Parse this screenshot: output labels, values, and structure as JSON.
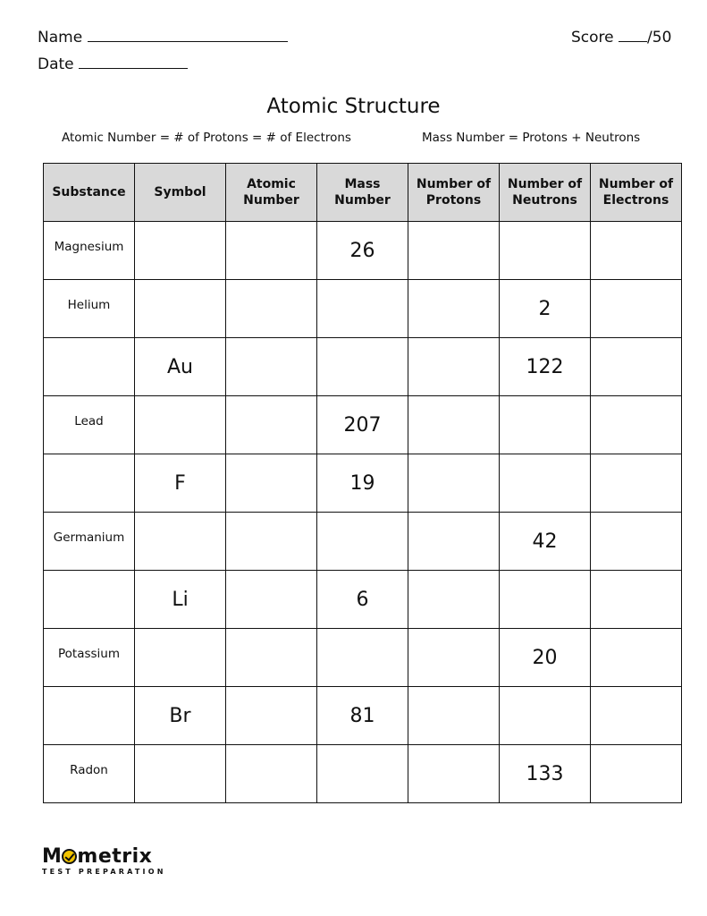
{
  "header": {
    "name_label": "Name",
    "date_label": "Date",
    "score_label": "Score",
    "score_total": "/50"
  },
  "title": "Atomic Structure",
  "formulas": {
    "left": "Atomic Number = # of Protons = # of Electrons",
    "right": "Mass Number = Protons + Neutrons"
  },
  "table": {
    "columns": [
      [
        "Substance"
      ],
      [
        "Symbol"
      ],
      [
        "Atomic",
        "Number"
      ],
      [
        "Mass",
        "Number"
      ],
      [
        "Number of",
        "Protons"
      ],
      [
        "Number of",
        "Neutrons"
      ],
      [
        "Number of",
        "Electrons"
      ]
    ],
    "rows": [
      [
        "Magnesium",
        "",
        "",
        "26",
        "",
        "",
        ""
      ],
      [
        "Helium",
        "",
        "",
        "",
        "",
        "2",
        ""
      ],
      [
        "",
        "Au",
        "",
        "",
        "",
        "122",
        ""
      ],
      [
        "Lead",
        "",
        "",
        "207",
        "",
        "",
        ""
      ],
      [
        "",
        "F",
        "",
        "19",
        "",
        "",
        ""
      ],
      [
        "Germanium",
        "",
        "",
        "",
        "",
        "42",
        ""
      ],
      [
        "",
        "Li",
        "",
        "6",
        "",
        "",
        ""
      ],
      [
        "Potassium",
        "",
        "",
        "",
        "",
        "20",
        ""
      ],
      [
        "",
        "Br",
        "",
        "81",
        "",
        "",
        ""
      ],
      [
        "Radon",
        "",
        "",
        "",
        "",
        "133",
        ""
      ]
    ]
  },
  "logo": {
    "brand": "Mometrix",
    "tagline": "TEST PREPARATION"
  }
}
